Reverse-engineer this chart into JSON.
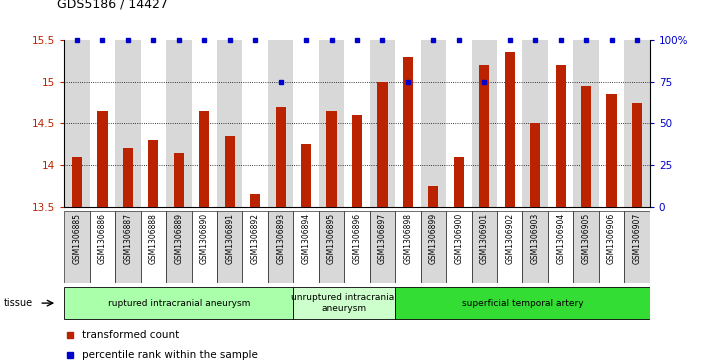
{
  "title": "GDS5186 / 14427",
  "samples": [
    "GSM1306885",
    "GSM1306886",
    "GSM1306887",
    "GSM1306888",
    "GSM1306889",
    "GSM1306890",
    "GSM1306891",
    "GSM1306892",
    "GSM1306893",
    "GSM1306894",
    "GSM1306895",
    "GSM1306896",
    "GSM1306897",
    "GSM1306898",
    "GSM1306899",
    "GSM1306900",
    "GSM1306901",
    "GSM1306902",
    "GSM1306903",
    "GSM1306904",
    "GSM1306905",
    "GSM1306906",
    "GSM1306907"
  ],
  "transformed_count": [
    14.1,
    14.65,
    14.2,
    14.3,
    14.15,
    14.65,
    14.35,
    13.65,
    14.7,
    14.25,
    14.65,
    14.6,
    15.0,
    15.3,
    13.75,
    14.1,
    15.2,
    15.35,
    14.5,
    15.2,
    14.95,
    14.85,
    14.75
  ],
  "percentile_rank": [
    100,
    100,
    100,
    100,
    100,
    100,
    100,
    100,
    75,
    100,
    100,
    100,
    100,
    75,
    100,
    100,
    75,
    100,
    100,
    100,
    100,
    100,
    100
  ],
  "groups": [
    {
      "label": "ruptured intracranial aneurysm",
      "start": 0,
      "end": 9,
      "color": "#aaffaa"
    },
    {
      "label": "unruptured intracranial\naneurysm",
      "start": 9,
      "end": 13,
      "color": "#ccffcc"
    },
    {
      "label": "superficial temporal artery",
      "start": 13,
      "end": 23,
      "color": "#33dd33"
    }
  ],
  "ylim": [
    13.5,
    15.5
  ],
  "yticks": [
    13.5,
    14.0,
    14.5,
    15.0,
    15.5
  ],
  "ytick_labels": [
    "13.5",
    "14",
    "14.5",
    "15",
    "15.5"
  ],
  "y2ticks": [
    0,
    25,
    50,
    75,
    100
  ],
  "y2tick_labels": [
    "0",
    "25",
    "50",
    "75",
    "100%"
  ],
  "bar_color": "#bb2200",
  "dot_color": "#0000cc",
  "plot_bg": "#ffffff",
  "col_bg_odd": "#d8d8d8",
  "col_bg_even": "#ffffff",
  "tissue_label": "tissue",
  "legend_bar": "transformed count",
  "legend_dot": "percentile rank within the sample",
  "grid_lines": [
    14.0,
    14.5,
    15.0
  ]
}
